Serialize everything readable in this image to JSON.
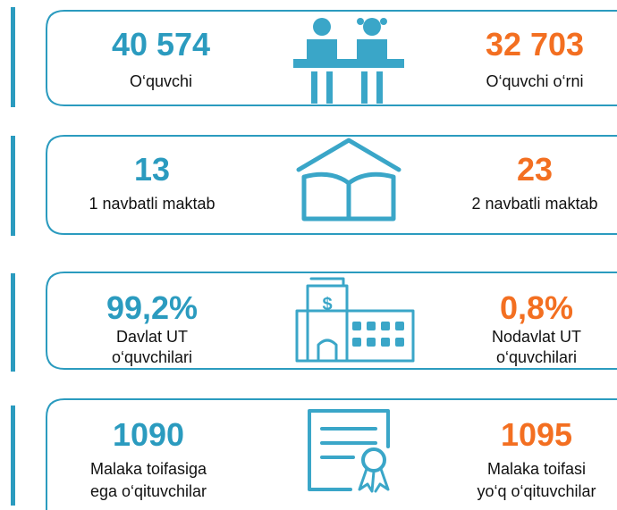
{
  "rows": [
    {
      "left": {
        "value": "40 574",
        "label": [
          "O‘quvchi"
        ]
      },
      "right": {
        "value": "32 703",
        "label": [
          "O‘quvchi o‘rni"
        ]
      }
    },
    {
      "left": {
        "value": "13",
        "label": [
          "1 navbatli maktab"
        ]
      },
      "right": {
        "value": "23",
        "label": [
          "2 navbatli maktab"
        ]
      }
    },
    {
      "left": {
        "value": "99,2%",
        "label": [
          "Davlat UT",
          "o‘quvchilari"
        ]
      },
      "right": {
        "value": "0,8%",
        "label": [
          "Nodavlat UT",
          "o‘quvchilari"
        ]
      }
    },
    {
      "left": {
        "value": "1090",
        "label": [
          "Malaka toifasiga",
          "ega o‘qituvchilar"
        ]
      },
      "right": {
        "value": "1095",
        "label": [
          "Malaka toifasi",
          "yo‘q o‘qituvchilar"
        ]
      }
    }
  ]
}
